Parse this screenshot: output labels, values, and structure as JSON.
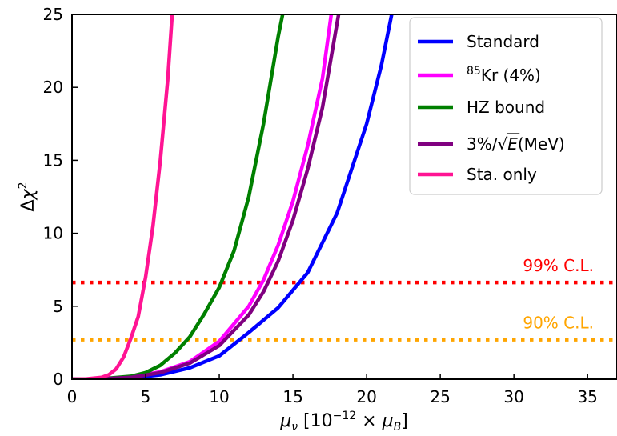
{
  "chart_data": {
    "type": "line",
    "xlabel": "μν [10⁻¹² × μB]",
    "ylabel": "Δχ²",
    "xlim": [
      0,
      37
    ],
    "ylim": [
      0,
      25
    ],
    "xticks": [
      0,
      5,
      10,
      15,
      20,
      25,
      30,
      35
    ],
    "yticks": [
      0,
      5,
      10,
      15,
      20,
      25
    ],
    "grid": false,
    "legend_position": "top-right",
    "series": [
      {
        "name": "Standard",
        "color": "#0000ff",
        "x": [
          0,
          2,
          4,
          6,
          8,
          10,
          12,
          14,
          16,
          18,
          20,
          21,
          21.7
        ],
        "y": [
          0,
          0.01,
          0.08,
          0.3,
          0.78,
          1.6,
          3.2,
          4.9,
          7.3,
          11.4,
          17.5,
          21.5,
          25
        ]
      },
      {
        "name": "⁸⁵Kr (4%)",
        "color": "#ff00ff",
        "x": [
          0,
          2,
          4,
          6,
          8,
          10,
          12,
          13,
          14,
          15,
          16,
          17,
          17.6
        ],
        "y": [
          0,
          0.02,
          0.14,
          0.5,
          1.2,
          2.6,
          5.0,
          6.8,
          9.2,
          12.2,
          16.0,
          20.6,
          25
        ]
      },
      {
        "name": "HZ bound",
        "color": "#008000",
        "x": [
          0,
          2,
          4,
          5,
          6,
          7,
          8,
          9,
          10,
          11,
          12,
          13,
          14,
          14.3
        ],
        "y": [
          0,
          0.03,
          0.2,
          0.45,
          0.95,
          1.8,
          2.9,
          4.5,
          6.3,
          8.8,
          12.5,
          17.5,
          23.5,
          25
        ]
      },
      {
        "name": "3%/√E(MeV)",
        "color": "#800080",
        "x": [
          0,
          2,
          4,
          6,
          8,
          10,
          12,
          13,
          14,
          15,
          16,
          17,
          18.1
        ],
        "y": [
          0,
          0.02,
          0.12,
          0.45,
          1.1,
          2.3,
          4.4,
          6.0,
          8.1,
          10.9,
          14.4,
          18.6,
          25
        ]
      },
      {
        "name": "Sta. only",
        "color": "#ff1493",
        "x": [
          0,
          1,
          2,
          2.5,
          3,
          3.5,
          4,
          4.5,
          5,
          5.5,
          6,
          6.5,
          6.8
        ],
        "y": [
          0,
          0.02,
          0.12,
          0.3,
          0.7,
          1.5,
          2.8,
          4.3,
          7.0,
          10.5,
          15.0,
          20.5,
          25
        ]
      }
    ],
    "reference_lines": [
      {
        "label": "99% C.L.",
        "y": 6.63,
        "color": "#ff0000"
      },
      {
        "label": "90% C.L.",
        "y": 2.71,
        "color": "#ffa500"
      }
    ]
  }
}
